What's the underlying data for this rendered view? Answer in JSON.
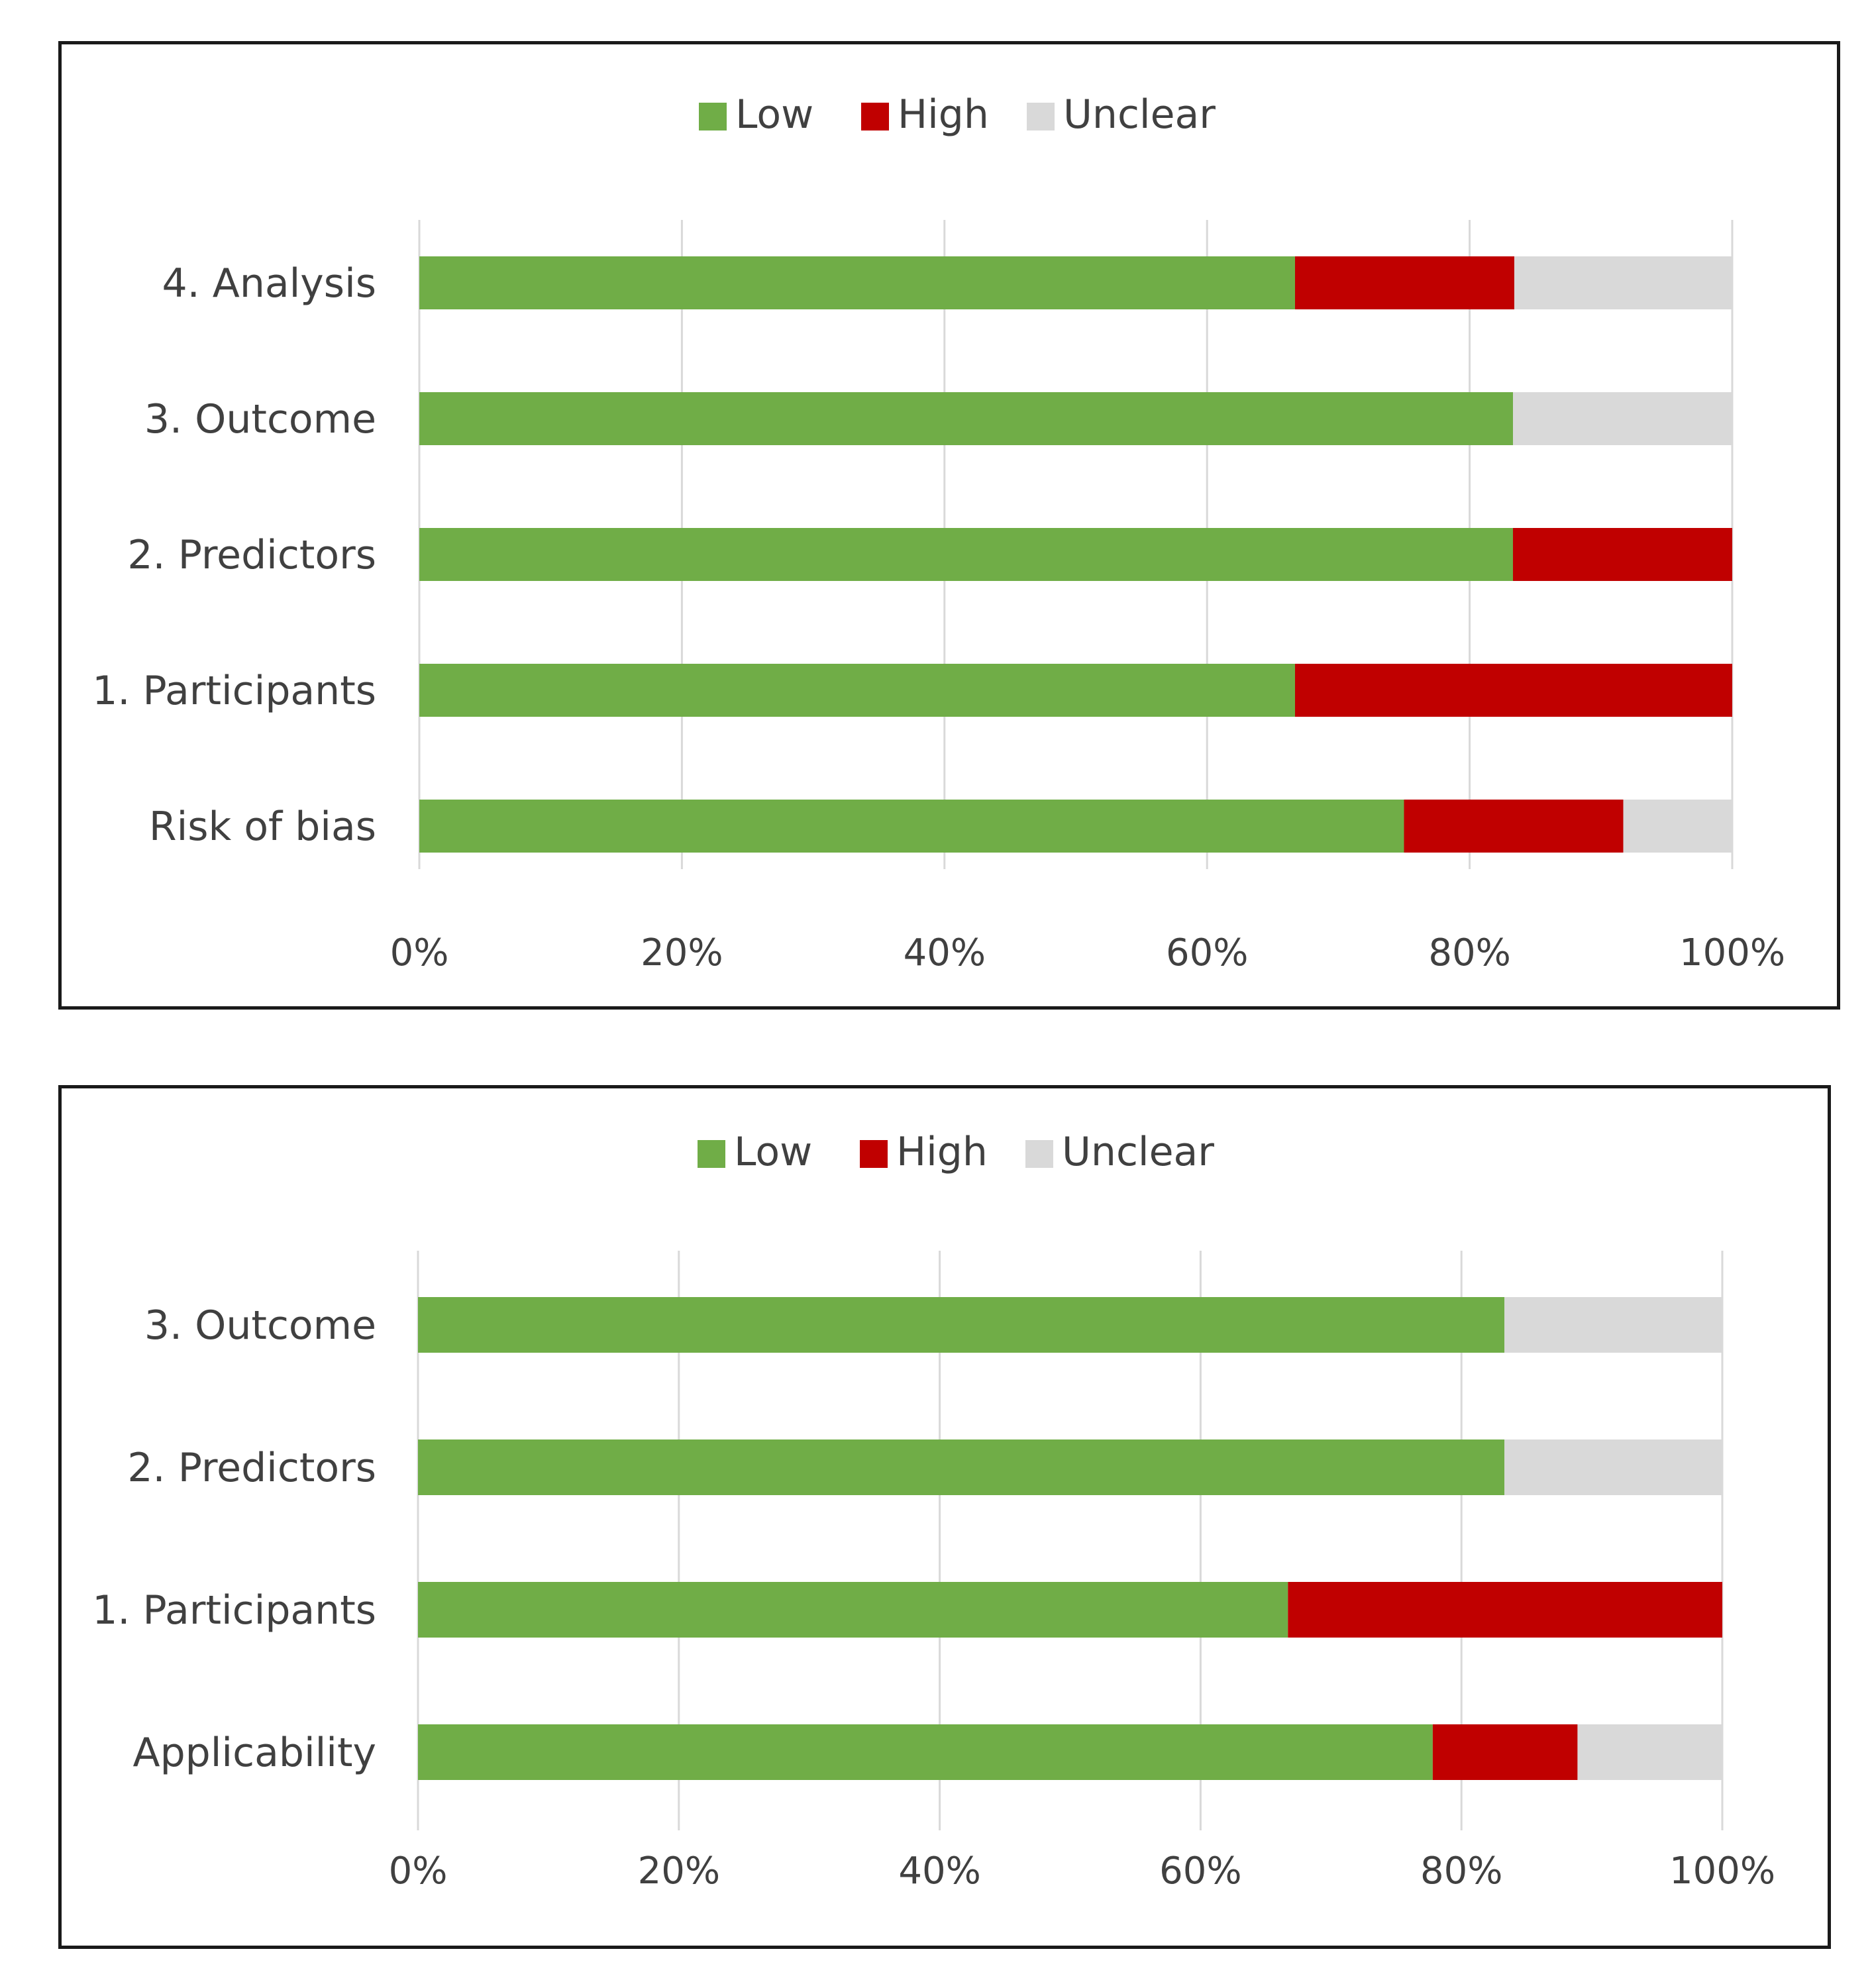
{
  "colors": {
    "low": "#70ad47",
    "high": "#c00000",
    "unclear": "#d9d9d9",
    "text": "#404040",
    "grid": "#d9d9d9"
  },
  "chart_data": [
    {
      "type": "bar",
      "orientation": "horizontal",
      "stacked": "percent",
      "legend": [
        "Low",
        "High",
        "Unclear"
      ],
      "legend_position": "top",
      "categories": [
        "4. Analysis",
        "3. Outcome",
        "2. Predictors",
        "1. Participants",
        "Risk of bias"
      ],
      "series": [
        {
          "name": "Low",
          "values": [
            66.7,
            83.3,
            83.3,
            66.7,
            75.0
          ]
        },
        {
          "name": "High",
          "values": [
            16.7,
            0,
            16.7,
            33.3,
            16.7
          ]
        },
        {
          "name": "Unclear",
          "values": [
            16.6,
            16.7,
            0,
            0,
            8.3
          ]
        }
      ],
      "xlim": [
        0,
        100
      ],
      "xticks": [
        "0%",
        "20%",
        "40%",
        "60%",
        "80%",
        "100%"
      ],
      "grid": true
    },
    {
      "type": "bar",
      "orientation": "horizontal",
      "stacked": "percent",
      "legend": [
        "Low",
        "High",
        "Unclear"
      ],
      "legend_position": "top",
      "categories": [
        "3. Outcome",
        "2. Predictors",
        "1. Participants",
        "Applicability"
      ],
      "series": [
        {
          "name": "Low",
          "values": [
            83.3,
            83.3,
            66.7,
            77.8
          ]
        },
        {
          "name": "High",
          "values": [
            0,
            0,
            33.3,
            11.1
          ]
        },
        {
          "name": "Unclear",
          "values": [
            16.7,
            16.7,
            0,
            11.1
          ]
        }
      ],
      "xlim": [
        0,
        100
      ],
      "xticks": [
        "0%",
        "20%",
        "40%",
        "60%",
        "80%",
        "100%"
      ],
      "grid": true
    }
  ]
}
